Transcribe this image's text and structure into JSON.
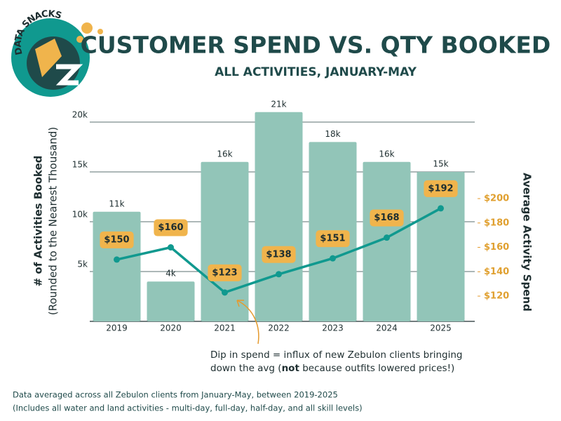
{
  "chart_data": {
    "type": "bar",
    "logo": "DATA SNACKS",
    "title": "CUSTOMER SPEND VS. QTY BOOKED",
    "subtitle": "ALL ACTIVITIES, JANUARY-MAY",
    "ylabel": [
      "# of Activities Booked",
      "(Rounded to the Nearest Thousand)"
    ],
    "y2label": "Average Activity Spend",
    "categories": [
      "2019",
      "2020",
      "2021",
      "2022",
      "2023",
      "2024",
      "2025"
    ],
    "series": [
      {
        "type": "bar",
        "color": "#92c5b8",
        "values": [
          11000,
          4000,
          16000,
          21000,
          18000,
          16000,
          15000
        ],
        "value_labels": [
          "11k",
          "4k",
          "16k",
          "21k",
          "18k",
          "16k",
          "15k"
        ]
      },
      {
        "type": "line",
        "axis": "y2",
        "color": "#10998f",
        "label_color": "#f0b44c",
        "values": [
          150,
          160,
          123,
          138,
          151,
          168,
          192
        ],
        "value_labels": [
          "$150",
          "$160",
          "$123",
          "$138",
          "$151",
          "$168",
          "$192"
        ]
      }
    ],
    "ylim": [
      0,
      22000
    ],
    "yticks": [
      {
        "value": 5000,
        "label": "5k"
      },
      {
        "value": 10000,
        "label": "10k"
      },
      {
        "value": 15000,
        "label": "15k"
      },
      {
        "value": 20000,
        "label": "20k"
      }
    ],
    "y2lim": [
      99.3,
      279.1
    ],
    "y2ticks": [
      {
        "value": 120,
        "label": "$120"
      },
      {
        "value": 140,
        "label": "$140"
      },
      {
        "value": 160,
        "label": "$160"
      },
      {
        "value": 180,
        "label": "$180"
      },
      {
        "value": 200,
        "label": "$200"
      }
    ],
    "grid": true,
    "annotation": [
      "Dip in spend = influx of new Zebulon clients bringing",
      "down the avg (",
      "not",
      " because outfits lowered prices!)"
    ],
    "footnotes": [
      "Data averaged across all Zebulon clients from January-May, between 2019-2025",
      "(Includes all water and land activities - multi-day, full-day, half-day, and all skill levels)"
    ]
  }
}
